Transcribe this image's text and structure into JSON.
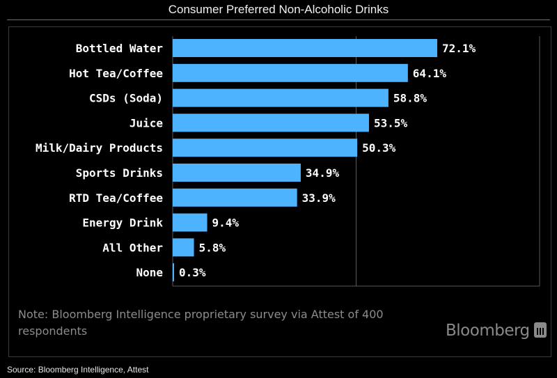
{
  "chart_data": {
    "type": "bar",
    "orientation": "horizontal",
    "title": "Consumer Preferred Non-Alcoholic Drinks",
    "categories": [
      "Bottled Water",
      "Hot Tea/Coffee",
      "CSDs (Soda)",
      "Juice",
      "Milk/Dairy Products",
      "Sports Drinks",
      "RTD Tea/Coffee",
      "Energy Drink",
      "All Other",
      "None"
    ],
    "values": [
      72.1,
      64.1,
      58.8,
      53.5,
      50.3,
      34.9,
      33.9,
      9.4,
      5.8,
      0.3
    ],
    "value_labels": [
      "72.1%",
      "64.1%",
      "58.8%",
      "53.5%",
      "50.3%",
      "34.9%",
      "33.9%",
      "9.4%",
      "5.8%",
      "0.3%"
    ],
    "xlim": [
      0,
      100
    ],
    "xlabel": "",
    "ylabel": "",
    "bar_color": "#4db3ff",
    "grid": "vertical line at 50"
  },
  "note": "Note: Bloomberg Intelligence proprietary survey via Attest of 400 respondents",
  "logo_text": "Bloomberg",
  "source": "Source: Bloomberg Intelligence, Attest"
}
